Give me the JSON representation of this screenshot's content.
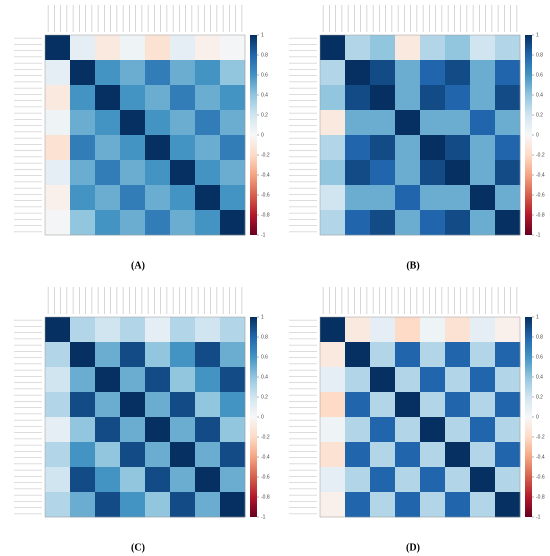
{
  "chart_data": [
    {
      "type": "heatmap",
      "label": "(A)",
      "zlim": [
        -1,
        1
      ],
      "zticks": [
        1,
        0.8,
        0.6,
        0.4,
        0.2,
        0,
        -0.2,
        -0.4,
        -0.6,
        -0.8,
        -1
      ],
      "z": [
        [
          1,
          0.1,
          -0.1,
          0.05,
          -0.15,
          0.1,
          -0.05,
          0.02
        ],
        [
          0.1,
          1,
          0.6,
          0.5,
          0.7,
          0.5,
          0.6,
          0.4
        ],
        [
          -0.1,
          0.6,
          1,
          0.6,
          0.5,
          0.7,
          0.5,
          0.6
        ],
        [
          0.05,
          0.5,
          0.6,
          1,
          0.6,
          0.5,
          0.7,
          0.5
        ],
        [
          -0.15,
          0.7,
          0.5,
          0.6,
          1,
          0.6,
          0.5,
          0.7
        ],
        [
          0.1,
          0.5,
          0.7,
          0.5,
          0.6,
          1,
          0.6,
          0.5
        ],
        [
          -0.05,
          0.6,
          0.5,
          0.7,
          0.5,
          0.6,
          1,
          0.6
        ],
        [
          0.02,
          0.4,
          0.6,
          0.5,
          0.7,
          0.5,
          0.6,
          1
        ]
      ]
    },
    {
      "type": "heatmap",
      "label": "(B)",
      "zlim": [
        -1,
        1
      ],
      "zticks": [
        1,
        0.8,
        0.6,
        0.4,
        0.2,
        0,
        -0.2,
        -0.4,
        -0.6,
        -0.8,
        -1
      ],
      "z": [
        [
          1,
          0.3,
          0.4,
          -0.1,
          0.3,
          0.4,
          0.2,
          0.3
        ],
        [
          0.3,
          1,
          0.9,
          0.5,
          0.8,
          0.9,
          0.5,
          0.8
        ],
        [
          0.4,
          0.9,
          1,
          0.5,
          0.9,
          0.8,
          0.5,
          0.9
        ],
        [
          -0.1,
          0.5,
          0.5,
          1,
          0.5,
          0.5,
          0.8,
          0.5
        ],
        [
          0.3,
          0.8,
          0.9,
          0.5,
          1,
          0.9,
          0.5,
          0.8
        ],
        [
          0.4,
          0.9,
          0.8,
          0.5,
          0.9,
          1,
          0.5,
          0.9
        ],
        [
          0.2,
          0.5,
          0.5,
          0.8,
          0.5,
          0.5,
          1,
          0.5
        ],
        [
          0.3,
          0.8,
          0.9,
          0.5,
          0.8,
          0.9,
          0.5,
          1
        ]
      ]
    },
    {
      "type": "heatmap",
      "label": "(C)",
      "zlim": [
        -1,
        1
      ],
      "zticks": [
        1,
        0.8,
        0.6,
        0.4,
        0.2,
        0,
        -0.2,
        -0.4,
        -0.6,
        -0.8,
        -1
      ],
      "z": [
        [
          1,
          0.3,
          0.2,
          0.3,
          0.1,
          0.3,
          0.2,
          0.3
        ],
        [
          0.3,
          1,
          0.5,
          0.9,
          0.4,
          0.6,
          0.9,
          0.5
        ],
        [
          0.2,
          0.5,
          1,
          0.5,
          0.9,
          0.4,
          0.6,
          0.9
        ],
        [
          0.3,
          0.9,
          0.5,
          1,
          0.5,
          0.9,
          0.4,
          0.6
        ],
        [
          0.1,
          0.4,
          0.9,
          0.5,
          1,
          0.5,
          0.9,
          0.4
        ],
        [
          0.3,
          0.6,
          0.4,
          0.9,
          0.5,
          1,
          0.5,
          0.9
        ],
        [
          0.2,
          0.9,
          0.6,
          0.4,
          0.9,
          0.5,
          1,
          0.5
        ],
        [
          0.3,
          0.5,
          0.9,
          0.6,
          0.4,
          0.9,
          0.5,
          1
        ]
      ]
    },
    {
      "type": "heatmap",
      "label": "(D)",
      "zlim": [
        -1,
        1
      ],
      "zticks": [
        1,
        0.8,
        0.6,
        0.4,
        0.2,
        0,
        -0.2,
        -0.4,
        -0.6,
        -0.8,
        -1
      ],
      "z": [
        [
          1,
          -0.1,
          0.1,
          -0.2,
          0.05,
          -0.15,
          0.1,
          -0.05
        ],
        [
          -0.1,
          1,
          0.3,
          0.8,
          0.3,
          0.8,
          0.3,
          0.8
        ],
        [
          0.1,
          0.3,
          1,
          0.3,
          0.8,
          0.3,
          0.8,
          0.3
        ],
        [
          -0.2,
          0.8,
          0.3,
          1,
          0.3,
          0.8,
          0.3,
          0.8
        ],
        [
          0.05,
          0.3,
          0.8,
          0.3,
          1,
          0.3,
          0.8,
          0.3
        ],
        [
          -0.15,
          0.8,
          0.3,
          0.8,
          0.3,
          1,
          0.3,
          0.8
        ],
        [
          0.1,
          0.3,
          0.8,
          0.3,
          0.8,
          0.3,
          1,
          0.3
        ],
        [
          -0.05,
          0.8,
          0.3,
          0.8,
          0.3,
          0.8,
          0.3,
          1
        ]
      ]
    }
  ]
}
